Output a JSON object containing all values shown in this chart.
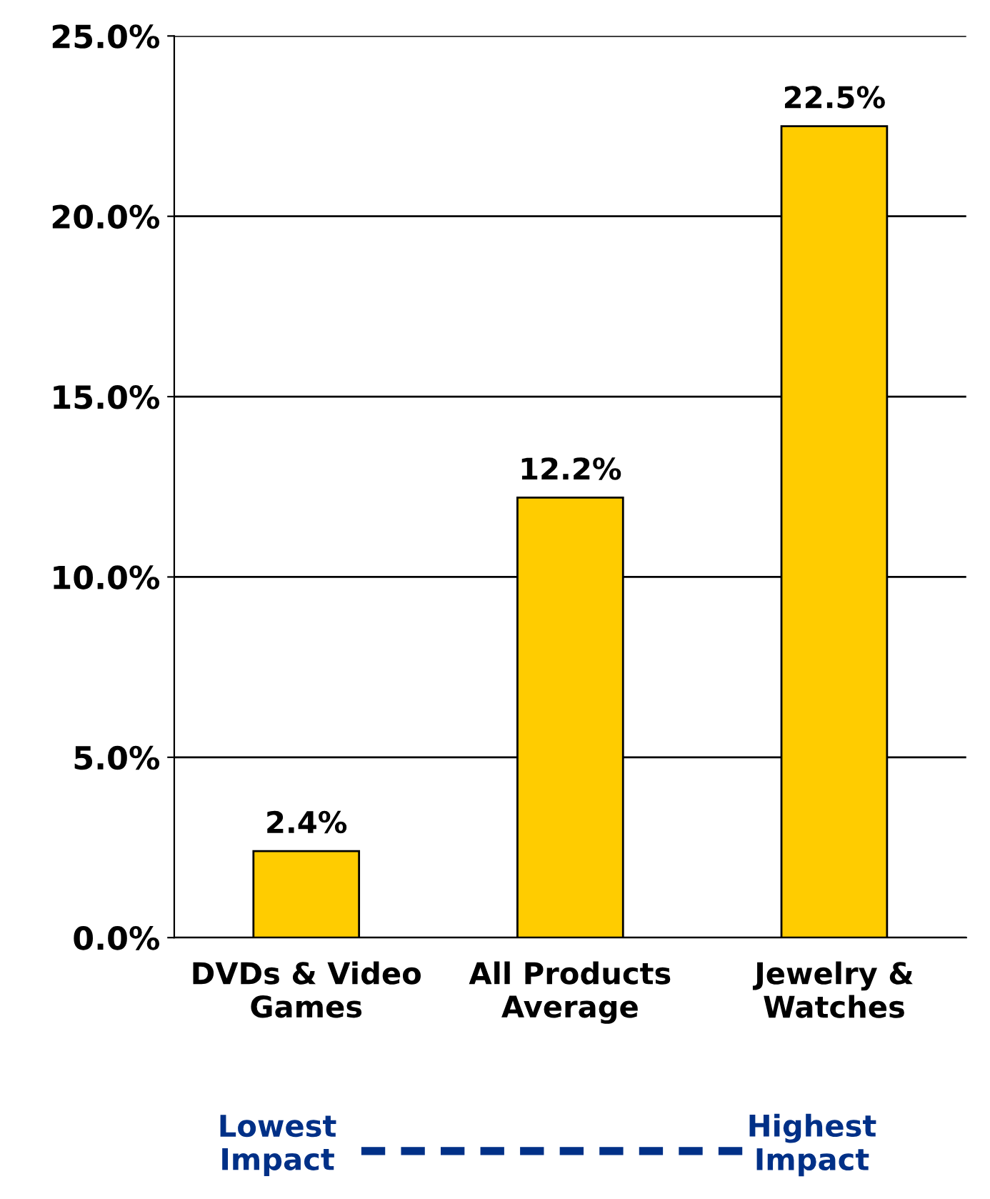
{
  "chart_data": {
    "type": "bar",
    "categories": [
      "DVDs & Video\nGames",
      "All Products\nAverage",
      "Jewelry &\nWatches"
    ],
    "values": [
      2.4,
      12.2,
      22.5
    ],
    "value_labels": [
      "2.4%",
      "12.2%",
      "22.5%"
    ],
    "color": "#ffcc00",
    "ylim": [
      0,
      25
    ],
    "yticks": [
      {
        "value": 0,
        "label": "0.0%"
      },
      {
        "value": 5,
        "label": "5.0%"
      },
      {
        "value": 10,
        "label": "10.0%"
      },
      {
        "value": 15,
        "label": "15.0%"
      },
      {
        "value": 20,
        "label": "20.0%"
      },
      {
        "value": 25,
        "label": "25.0%"
      }
    ],
    "grid": "y",
    "annotations": [
      "Lowest\nImpact",
      "Highest\nImpact"
    ]
  }
}
